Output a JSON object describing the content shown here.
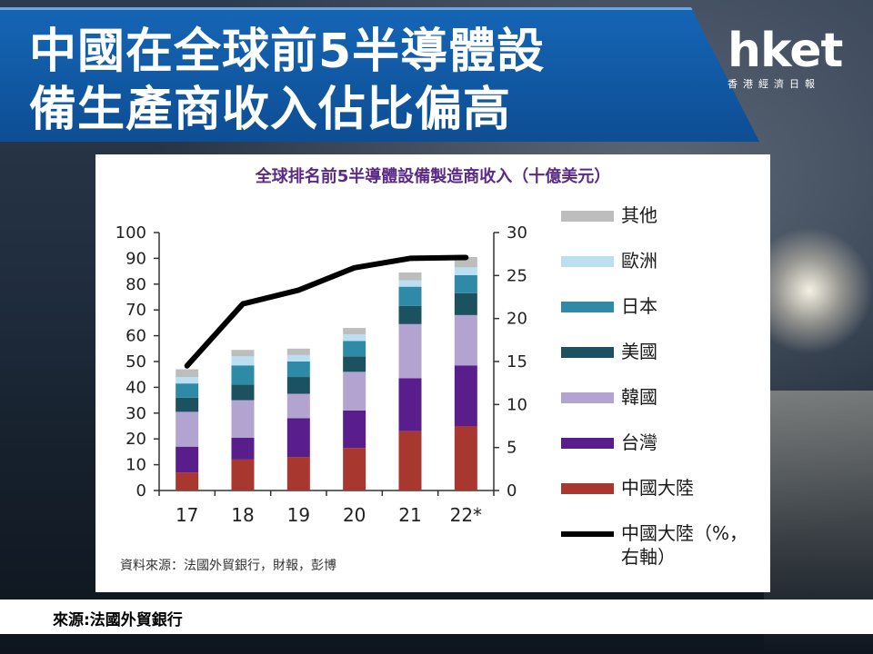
{
  "banner": {
    "title_line1": "中國在全球前5半導體設",
    "title_line2": "備生產商收入佔比偏高"
  },
  "logo": {
    "word": "hket",
    "sub": "香港經濟日報"
  },
  "chart_data": {
    "type": "bar",
    "title": "全球排名前5半導體設備製造商收入（十億美元）",
    "categories": [
      "17",
      "18",
      "19",
      "20",
      "21",
      "22*"
    ],
    "ylim": [
      0,
      100
    ],
    "y_ticks": [
      0,
      10,
      20,
      30,
      40,
      50,
      60,
      70,
      80,
      90,
      100
    ],
    "y2lim": [
      0,
      30
    ],
    "y2_ticks": [
      0,
      5,
      10,
      15,
      20,
      25,
      30
    ],
    "stacked": true,
    "series": [
      {
        "name": "中國大陸",
        "color": "#a8372f",
        "values": [
          7,
          12,
          13,
          16.5,
          23,
          25
        ]
      },
      {
        "name": "台灣",
        "color": "#5a1e8c",
        "values": [
          10,
          8.5,
          15,
          14.5,
          20.5,
          23.5
        ]
      },
      {
        "name": "韓國",
        "color": "#b3a3d0",
        "values": [
          13.5,
          14.5,
          9.5,
          15,
          21,
          19.5
        ]
      },
      {
        "name": "美國",
        "color": "#1c5260",
        "values": [
          5.5,
          6,
          6.5,
          6,
          7,
          8.5
        ]
      },
      {
        "name": "日本",
        "color": "#2e8aa6",
        "values": [
          5.5,
          7.5,
          6,
          6,
          7.5,
          7
        ]
      },
      {
        "name": "歐洲",
        "color": "#b9dff0",
        "values": [
          2.5,
          3.5,
          2.5,
          2.5,
          2.5,
          3
        ]
      },
      {
        "name": "其他",
        "color": "#bdbdbd",
        "values": [
          3,
          2.5,
          2.5,
          2.5,
          3,
          4
        ]
      }
    ],
    "line_series": {
      "name": "中國大陸（%，右軸）",
      "axis": "right",
      "color": "#000000",
      "values": [
        14.5,
        21.7,
        23.3,
        25.9,
        27.0,
        27.1
      ]
    },
    "legend_labels": [
      "其他",
      "歐洲",
      "日本",
      "美國",
      "韓國",
      "台灣",
      "中國大陸",
      "中國大陸（%，",
      "右軸）"
    ],
    "source_note": "資料來源：法國外貿銀行，財報，彭博"
  },
  "footer": {
    "source": "來源:法國外貿銀行"
  }
}
